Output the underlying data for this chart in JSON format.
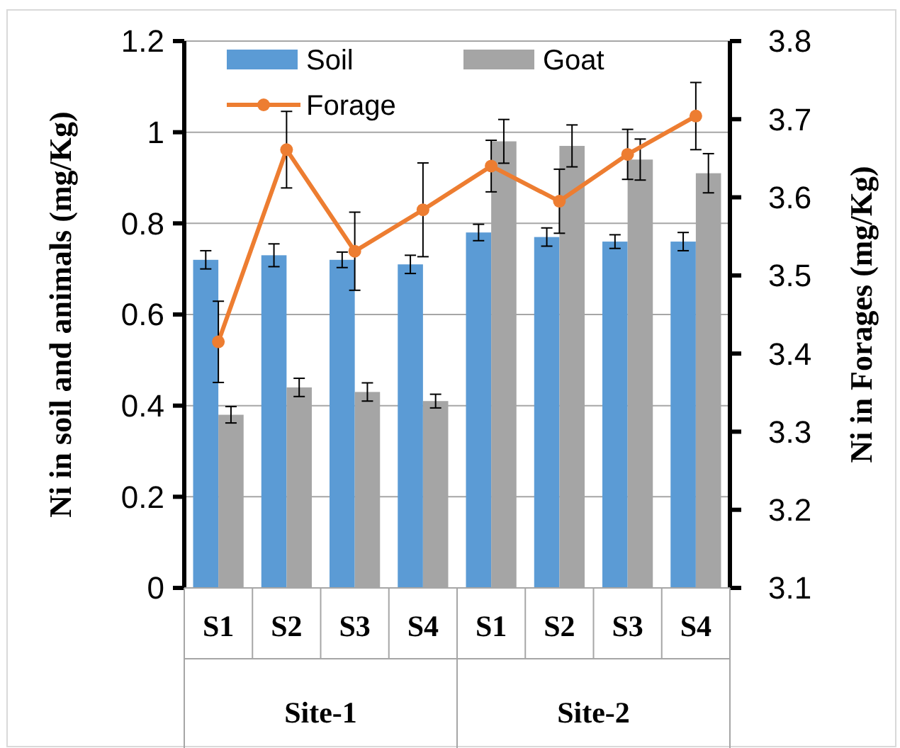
{
  "chart_data": {
    "type": "bar",
    "ylabel": "Ni in soil and animals (mg/Kg)",
    "y2label": "Ni in Forages (mg/Kg)",
    "categories": [
      "S1",
      "S2",
      "S3",
      "S4",
      "S1",
      "S2",
      "S3",
      "S4"
    ],
    "series": [
      {
        "name": "Soil",
        "color": "#5b9bd5",
        "values": [
          0.72,
          0.73,
          0.72,
          0.71,
          0.78,
          0.77,
          0.76,
          0.76
        ],
        "errors": [
          0.02,
          0.025,
          0.017,
          0.02,
          0.018,
          0.02,
          0.015,
          0.02
        ]
      },
      {
        "name": "Goat",
        "color": "#a5a5a5",
        "values": [
          0.38,
          0.44,
          0.43,
          0.41,
          0.98,
          0.97,
          0.94,
          0.91
        ],
        "errors": [
          0.018,
          0.02,
          0.02,
          0.015,
          0.048,
          0.046,
          0.045,
          0.043
        ]
      },
      {
        "name": "Forage",
        "type": "line",
        "axis": "y2",
        "color": "#ed7d31",
        "marker": "circle",
        "values": [
          3.415,
          3.661,
          3.531,
          3.584,
          3.64,
          3.595,
          3.655,
          3.704
        ],
        "errors": [
          0.052,
          0.049,
          0.05,
          0.06,
          0.033,
          0.041,
          0.032,
          0.043
        ]
      }
    ],
    "ylim": [
      0,
      1.2
    ],
    "yticks": [
      0,
      0.2,
      0.4,
      0.6,
      0.8,
      1,
      1.2
    ],
    "y2lim": [
      3.1,
      3.8
    ],
    "y2ticks": [
      3.1,
      3.2,
      3.3,
      3.4,
      3.5,
      3.6,
      3.7,
      3.8
    ],
    "grid": "y",
    "legend": "top",
    "annotations": [
      "Site-1",
      "Site-2"
    ]
  }
}
